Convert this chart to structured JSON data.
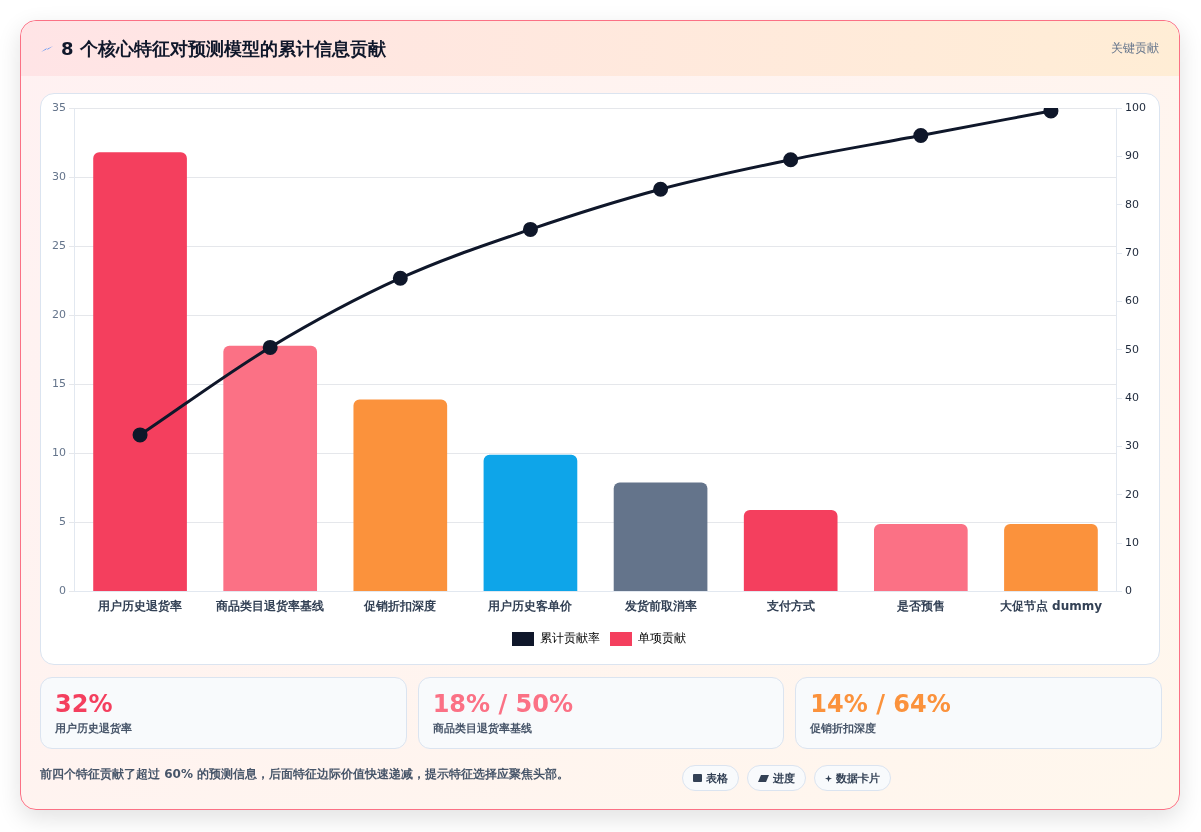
{
  "chart_data": [
    {
      "type": "bar",
      "title": "8 个核心特征对预测模型的累计信息贡献",
      "subtitle": "关键贡献",
      "categories": [
        "用户历史退货率",
        "商品类目退货率基线",
        "促销折扣深度",
        "用户历史客单价",
        "发货前取消率",
        "支付方式",
        "是否预售",
        "大促节点 dummy"
      ],
      "series": [
        {
          "name": "累计贡献率",
          "type": "line",
          "axis": "y2",
          "color": "#0f172a",
          "values": [
            32.4,
            50.5,
            64.8,
            74.9,
            83.2,
            89.3,
            94.3,
            99.4
          ]
        },
        {
          "name": "单项贡献",
          "type": "bar",
          "colors": [
            "#f43f5e",
            "#fb7185",
            "#fb923c",
            "#0ea5e9",
            "#64748b",
            "#f43f5e",
            "#fb7185",
            "#fb923c"
          ],
          "values": [
            31.8,
            17.8,
            13.9,
            9.9,
            7.9,
            5.9,
            4.9,
            4.9
          ]
        }
      ],
      "ylim": [
        0,
        35
      ],
      "yticks": [
        0,
        5,
        10,
        15,
        20,
        25,
        30,
        35
      ],
      "y2lim": [
        0,
        100
      ],
      "y2ticks": [
        0,
        10,
        20,
        30,
        40,
        50,
        60,
        70,
        80,
        90,
        100
      ],
      "grid": "y",
      "legend": "bottom",
      "marker": "circle",
      "line_style": "solid",
      "annotations": [
        "前四个特征贡献了超过 60% 的预测信息，后面特征边际价值快速递减，提示特征选择应聚焦头部。"
      ]
    },
    {
      "type": "other",
      "categories": [
        "用户历史退货率",
        "商品类目退货率基线",
        "促销折扣深度"
      ],
      "value_labels": [
        "32%",
        "18% / 50%",
        "14% / 64%"
      ],
      "annotations": [
        "表格",
        "进度",
        "数据卡片"
      ]
    }
  ]
}
